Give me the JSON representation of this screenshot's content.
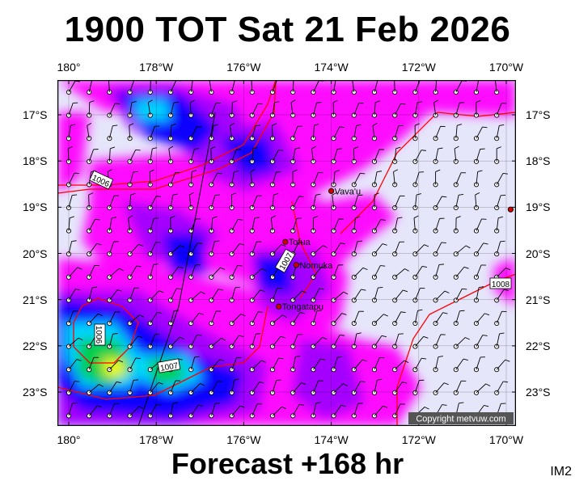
{
  "header": {
    "title": "1900 TOT Sat 21 Feb 2026"
  },
  "footer": {
    "forecast": "Forecast +168 hr",
    "code": "IM2"
  },
  "map": {
    "lon_ticks": [
      "180°",
      "178°W",
      "176°W",
      "174°W",
      "172°W",
      "170°W"
    ],
    "lat_ticks": [
      "17°S",
      "18°S",
      "19°S",
      "20°S",
      "21°S",
      "22°S",
      "23°S"
    ],
    "places": [
      {
        "name": "Vava'u",
        "lon": -174.0,
        "lat": -18.65
      },
      {
        "name": "Tofua",
        "lon": -175.05,
        "lat": -19.75
      },
      {
        "name": "Nomuka",
        "lon": -174.8,
        "lat": -20.25
      },
      {
        "name": "Tongatapu",
        "lon": -175.2,
        "lat": -21.15
      },
      {
        "name": "",
        "lon": -169.9,
        "lat": -19.05
      }
    ],
    "isobar_labels": [
      "1006",
      "1007",
      "1006",
      "1007",
      "1008"
    ],
    "copyright": "Copyright metvuw.com",
    "colors": {
      "sea_calm": "#e6e6fb",
      "wind_magenta": "#ff00ff",
      "wind_purple": "#a000ff",
      "wind_blue": "#0000ff",
      "wind_cyan": "#00e0ff",
      "wind_green": "#00cc44",
      "wind_yellow": "#ffff00",
      "isobar": "#ff0000"
    }
  }
}
